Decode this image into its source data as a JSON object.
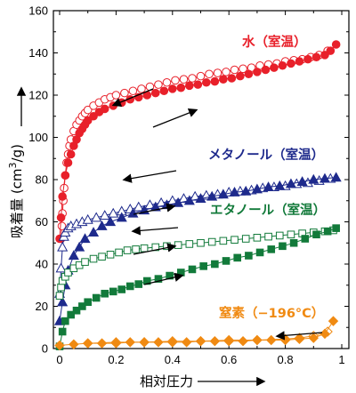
{
  "chart_data": {
    "type": "line",
    "xlabel": "相対圧力",
    "ylabel": "吸着量 (cm",
    "ylabel_sup": "3",
    "ylabel_end": "/g)",
    "xlim": [
      0,
      1
    ],
    "ylim": [
      0,
      160
    ],
    "xticks": [
      "0",
      "0.2",
      "0.4",
      "0.6",
      "0.8",
      "1"
    ],
    "yticks": [
      "0",
      "20",
      "40",
      "60",
      "80",
      "100",
      "120",
      "140",
      "160"
    ],
    "grid": false,
    "series": [
      {
        "name": "水（室温）",
        "color": "#e8202a",
        "marker": "circle",
        "adsorption": {
          "x": [
            0.0,
            0.005,
            0.01,
            0.02,
            0.03,
            0.04,
            0.05,
            0.06,
            0.07,
            0.08,
            0.09,
            0.1,
            0.12,
            0.14,
            0.16,
            0.19,
            0.22,
            0.25,
            0.28,
            0.31,
            0.34,
            0.37,
            0.4,
            0.43,
            0.46,
            0.49,
            0.52,
            0.55,
            0.58,
            0.61,
            0.64,
            0.67,
            0.7,
            0.73,
            0.76,
            0.79,
            0.82,
            0.85,
            0.88,
            0.91,
            0.94,
            0.96,
            0.98
          ],
          "y": [
            52,
            62,
            72,
            82,
            88,
            92,
            96,
            99,
            102,
            104,
            106,
            108,
            110,
            112,
            113.5,
            115,
            116.5,
            118,
            119,
            120,
            121,
            122,
            123,
            123.5,
            124.5,
            125,
            126,
            126.5,
            127.5,
            128,
            129,
            130,
            131,
            132,
            133,
            134,
            135,
            136,
            137,
            138,
            139,
            141,
            144
          ]
        },
        "desorption": {
          "x": [
            0.005,
            0.008,
            0.01,
            0.013,
            0.016,
            0.02,
            0.025,
            0.03,
            0.035,
            0.04,
            0.05,
            0.06,
            0.07,
            0.08,
            0.09,
            0.1,
            0.12,
            0.14,
            0.16,
            0.18,
            0.2,
            0.23,
            0.26,
            0.29,
            0.32,
            0.35,
            0.38,
            0.41,
            0.44,
            0.47,
            0.5,
            0.53,
            0.56,
            0.59,
            0.62,
            0.65,
            0.68,
            0.71,
            0.74,
            0.77,
            0.8,
            0.83,
            0.86,
            0.89,
            0.92,
            0.95
          ],
          "y": [
            52,
            58,
            64,
            70,
            76,
            82,
            88,
            92,
            96,
            99,
            103,
            106,
            108,
            110,
            111.5,
            113,
            115,
            116.5,
            118,
            119,
            120,
            121,
            122,
            123,
            124,
            125,
            126,
            127,
            127.5,
            128,
            129,
            130,
            130.5,
            131,
            132,
            132.5,
            133,
            134,
            134.5,
            135,
            136,
            136.5,
            137,
            138,
            139,
            141
          ]
        }
      },
      {
        "name": "メタノール（室温）",
        "color": "#1e2a8c",
        "marker": "triangle",
        "adsorption": {
          "x": [
            0.0,
            0.01,
            0.02,
            0.03,
            0.05,
            0.07,
            0.09,
            0.12,
            0.15,
            0.18,
            0.22,
            0.26,
            0.3,
            0.34,
            0.38,
            0.42,
            0.46,
            0.5,
            0.54,
            0.58,
            0.62,
            0.66,
            0.7,
            0.74,
            0.78,
            0.82,
            0.86,
            0.9,
            0.94,
            0.98
          ],
          "y": [
            13,
            22,
            30,
            37,
            44,
            48,
            52,
            55,
            58,
            60,
            62,
            64,
            65.5,
            67,
            68,
            69,
            70,
            71,
            72,
            73,
            74,
            74.5,
            75.5,
            76.5,
            77,
            78,
            79,
            80,
            80.5,
            81
          ]
        },
        "desorption": {
          "x": [
            0.0,
            0.005,
            0.01,
            0.015,
            0.02,
            0.03,
            0.04,
            0.06,
            0.08,
            0.1,
            0.13,
            0.16,
            0.19,
            0.22,
            0.25,
            0.28,
            0.32,
            0.36,
            0.4,
            0.44,
            0.48,
            0.52,
            0.56,
            0.6,
            0.64,
            0.68,
            0.72,
            0.76,
            0.8,
            0.84,
            0.88,
            0.92,
            0.96
          ],
          "y": [
            26,
            38,
            48,
            53,
            55,
            57,
            58,
            59,
            60,
            61,
            62,
            63,
            64,
            65,
            66,
            67,
            68,
            69,
            70,
            71,
            72,
            72.5,
            73,
            74,
            74.5,
            75,
            76,
            76.5,
            77,
            78,
            78.5,
            79.5,
            80.5
          ]
        }
      },
      {
        "name": "エタノール（室温）",
        "color": "#127a3a",
        "marker": "square",
        "adsorption": {
          "x": [
            0.0,
            0.01,
            0.02,
            0.04,
            0.06,
            0.08,
            0.1,
            0.13,
            0.16,
            0.19,
            0.22,
            0.25,
            0.28,
            0.31,
            0.35,
            0.39,
            0.43,
            0.47,
            0.51,
            0.55,
            0.59,
            0.63,
            0.67,
            0.71,
            0.75,
            0.79,
            0.83,
            0.87,
            0.91,
            0.95,
            0.98
          ],
          "y": [
            1,
            8,
            13,
            16,
            18,
            20,
            22,
            24,
            26,
            27,
            28,
            29.5,
            30.5,
            32,
            33,
            34.5,
            36,
            37.5,
            39,
            40,
            41.5,
            43,
            44,
            45.5,
            47,
            48.5,
            50,
            52,
            54,
            55.5,
            57
          ]
        },
        "desorption": {
          "x": [
            0.0,
            0.005,
            0.01,
            0.02,
            0.03,
            0.05,
            0.07,
            0.09,
            0.12,
            0.15,
            0.18,
            0.21,
            0.24,
            0.27,
            0.3,
            0.34,
            0.38,
            0.42,
            0.46,
            0.5,
            0.54,
            0.58,
            0.62,
            0.66,
            0.7,
            0.74,
            0.78,
            0.82,
            0.86,
            0.9,
            0.94,
            0.97
          ],
          "y": [
            25,
            29,
            32,
            34,
            36,
            38,
            39.5,
            41,
            42.5,
            43.5,
            44.5,
            45.5,
            46.5,
            47,
            47.5,
            48,
            48.5,
            49,
            49.5,
            50,
            50.5,
            51,
            51.5,
            52,
            52.5,
            53,
            53.5,
            54,
            54.5,
            55,
            55.5,
            56
          ]
        }
      },
      {
        "name": "窒素（−196°C）",
        "color": "#f08a12",
        "marker": "diamond",
        "adsorption": {
          "x": [
            0.0,
            0.05,
            0.1,
            0.15,
            0.2,
            0.25,
            0.3,
            0.35,
            0.4,
            0.45,
            0.5,
            0.55,
            0.6,
            0.65,
            0.7,
            0.75,
            0.8,
            0.85,
            0.9,
            0.94,
            0.97
          ],
          "y": [
            1.5,
            2,
            2.5,
            2.5,
            2.5,
            3,
            3,
            3,
            3,
            3,
            3.5,
            3.5,
            3.5,
            3.5,
            4,
            4,
            4,
            4.5,
            5,
            7,
            13
          ]
        },
        "desorption": {
          "x": [
            0.95,
            0.9,
            0.85,
            0.8,
            0.7,
            0.6,
            0.5,
            0.4,
            0.3,
            0.2,
            0.1
          ],
          "y": [
            8,
            6,
            5,
            4.5,
            4,
            4,
            3.5,
            3.5,
            3,
            3,
            2.5
          ]
        }
      }
    ],
    "label_positions_hint": [
      "upper-right",
      "right",
      "right",
      "lower-right"
    ]
  }
}
